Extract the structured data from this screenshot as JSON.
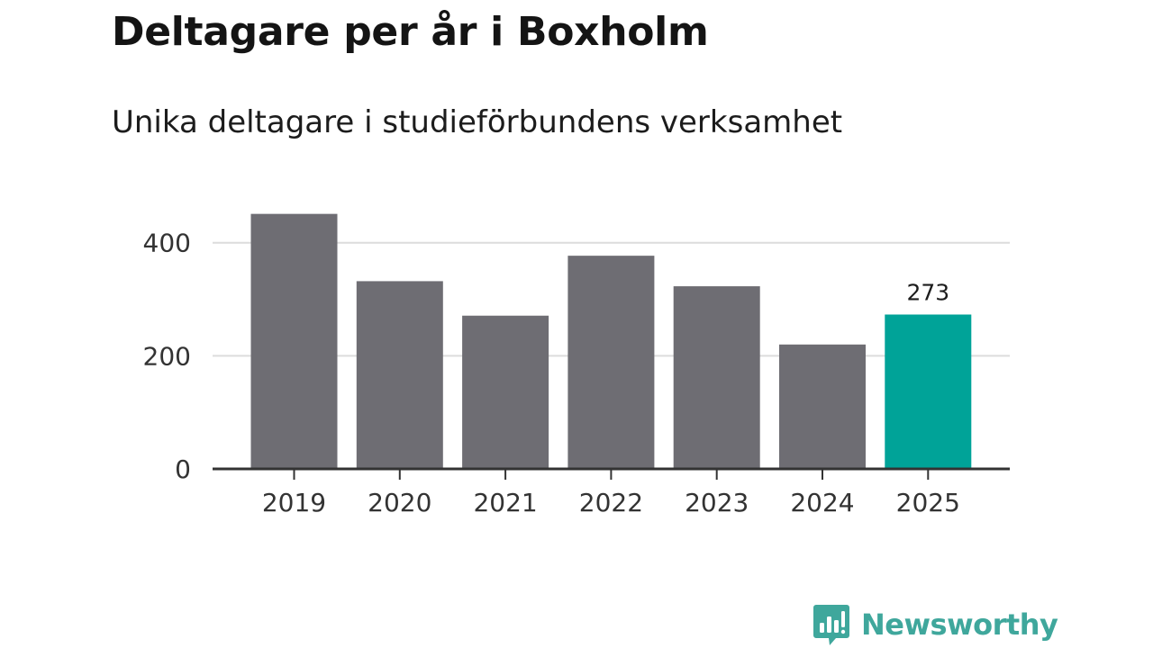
{
  "chart_data": {
    "type": "bar",
    "title": "Deltagare per år i Boxholm",
    "subtitle": "Unika deltagare i studieförbundens verksamhet",
    "xlabel": "",
    "ylabel": "",
    "categories": [
      "2019",
      "2020",
      "2021",
      "2022",
      "2023",
      "2024",
      "2025"
    ],
    "values": [
      451,
      332,
      271,
      377,
      323,
      220,
      273
    ],
    "ylim": [
      0,
      460
    ],
    "yticks": [
      0,
      200,
      400
    ],
    "ytick_labels": [
      "0",
      "200",
      "400"
    ],
    "grid": true,
    "highlight_index": 6,
    "data_labels": [
      {
        "index": 6,
        "text": "273"
      }
    ],
    "colors": {
      "bar": "#6e6d73",
      "highlight": "#00a398",
      "grid": "#dcdcdc",
      "axis": "#333333"
    }
  },
  "brand": {
    "name": "Newsworthy",
    "icon": "newsworthy-logo-icon",
    "color": "#3fa79c"
  }
}
